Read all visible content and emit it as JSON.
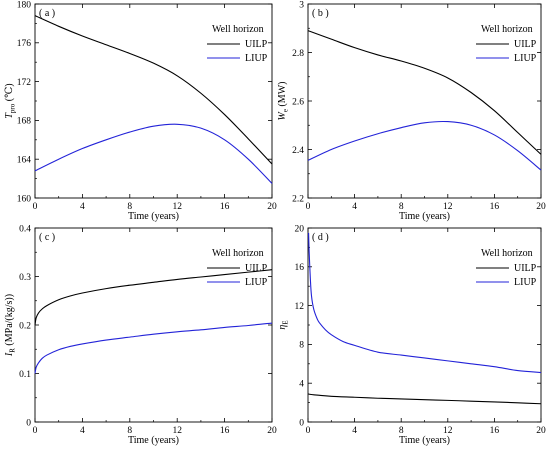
{
  "chart_data": [
    {
      "type": "line",
      "panel_label": "( a )",
      "xlabel": "Time (years)",
      "ylabel_main": "T",
      "ylabel_sub": "pro",
      "ylabel_unit": " (℃)",
      "xlim": [
        0,
        20
      ],
      "ylim": [
        160,
        180
      ],
      "xticks": [
        "0",
        "4",
        "8",
        "12",
        "16",
        "20"
      ],
      "yticks": [
        "160",
        "164",
        "168",
        "172",
        "176",
        "180"
      ],
      "ytick_values": [
        160,
        164,
        168,
        172,
        176,
        180
      ],
      "legend_title": "Well horizon",
      "legend_placement": "top-right",
      "grid": false,
      "series": [
        {
          "name": "UILP",
          "color": "#000000",
          "x": [
            0,
            2,
            4,
            6,
            8,
            10,
            12,
            14,
            16,
            18,
            20
          ],
          "y": [
            178.8,
            177.7,
            176.7,
            175.8,
            174.9,
            173.9,
            172.6,
            170.8,
            168.6,
            166.1,
            163.5
          ]
        },
        {
          "name": "LIUP",
          "color": "#2323d8",
          "x": [
            0,
            2,
            4,
            6,
            8,
            10,
            12,
            14,
            16,
            18,
            20
          ],
          "y": [
            162.8,
            164.0,
            165.1,
            166.0,
            166.8,
            167.4,
            167.6,
            167.2,
            166.0,
            164.0,
            161.5
          ]
        }
      ]
    },
    {
      "type": "line",
      "panel_label": "( b )",
      "xlabel": "Time (years)",
      "ylabel_main": "W",
      "ylabel_sub": "e",
      "ylabel_unit": " (MW)",
      "xlim": [
        0,
        20
      ],
      "ylim": [
        2.2,
        3.0
      ],
      "xticks": [
        "0",
        "4",
        "8",
        "12",
        "16",
        "20"
      ],
      "yticks": [
        "2.2",
        "2.4",
        "2.6",
        "2.8",
        "3"
      ],
      "ytick_values": [
        2.2,
        2.4,
        2.6,
        2.8,
        3.0
      ],
      "legend_title": "Well horizon",
      "legend_placement": "top-right",
      "grid": false,
      "series": [
        {
          "name": "UILP",
          "color": "#000000",
          "x": [
            0,
            2,
            4,
            6,
            8,
            10,
            12,
            14,
            16,
            18,
            20
          ],
          "y": [
            2.89,
            2.855,
            2.82,
            2.79,
            2.765,
            2.735,
            2.695,
            2.635,
            2.56,
            2.47,
            2.38
          ]
        },
        {
          "name": "LIUP",
          "color": "#2323d8",
          "x": [
            0,
            2,
            4,
            6,
            8,
            10,
            12,
            14,
            16,
            18,
            20
          ],
          "y": [
            2.355,
            2.4,
            2.435,
            2.465,
            2.49,
            2.51,
            2.515,
            2.5,
            2.46,
            2.395,
            2.315
          ]
        }
      ]
    },
    {
      "type": "line",
      "panel_label": "( c )",
      "xlabel": "Time (years)",
      "ylabel_main": "I",
      "ylabel_sub": "R",
      "ylabel_unit": " (MPa/(kg/s))",
      "xlim": [
        0,
        20
      ],
      "ylim": [
        0,
        0.4
      ],
      "xticks": [
        "0",
        "4",
        "8",
        "12",
        "16",
        "20"
      ],
      "yticks": [
        "0",
        "0.1",
        "0.2",
        "0.3",
        "0.4"
      ],
      "ytick_values": [
        0,
        0.1,
        0.2,
        0.3,
        0.4
      ],
      "legend_title": "Well horizon",
      "legend_placement": "top-right",
      "grid": false,
      "series": [
        {
          "name": "UILP",
          "color": "#000000",
          "x": [
            0,
            0.1,
            0.3,
            0.6,
            1,
            2,
            3,
            4,
            6,
            8,
            10,
            12,
            14,
            16,
            18,
            20
          ],
          "y": [
            0.2,
            0.215,
            0.225,
            0.233,
            0.24,
            0.252,
            0.26,
            0.266,
            0.275,
            0.282,
            0.288,
            0.294,
            0.299,
            0.304,
            0.309,
            0.314
          ]
        },
        {
          "name": "LIUP",
          "color": "#2323d8",
          "x": [
            0,
            0.1,
            0.3,
            0.6,
            1,
            2,
            3,
            4,
            6,
            8,
            10,
            12,
            14,
            16,
            18,
            20
          ],
          "y": [
            0.1,
            0.113,
            0.122,
            0.131,
            0.138,
            0.149,
            0.156,
            0.161,
            0.169,
            0.175,
            0.181,
            0.186,
            0.19,
            0.195,
            0.199,
            0.204
          ]
        }
      ]
    },
    {
      "type": "line",
      "panel_label": "( d )",
      "xlabel": "Time (years)",
      "ylabel_main": "η",
      "ylabel_sub": "E",
      "ylabel_unit": "",
      "xlim": [
        0,
        20
      ],
      "ylim": [
        0,
        20
      ],
      "xticks": [
        "0",
        "4",
        "8",
        "12",
        "16",
        "20"
      ],
      "yticks": [
        "0",
        "4",
        "8",
        "12",
        "16",
        "20"
      ],
      "ytick_values": [
        0,
        4,
        8,
        12,
        16,
        20
      ],
      "legend_title": "Well horizon",
      "legend_placement": "top-right",
      "grid": false,
      "series": [
        {
          "name": "UILP",
          "color": "#000000",
          "x": [
            0,
            0.2,
            0.5,
            1,
            2,
            4,
            6,
            8,
            10,
            12,
            14,
            16,
            18,
            20
          ],
          "y": [
            2.9,
            2.85,
            2.8,
            2.75,
            2.65,
            2.55,
            2.45,
            2.38,
            2.3,
            2.23,
            2.15,
            2.07,
            1.98,
            1.88
          ]
        },
        {
          "name": "LIUP",
          "color": "#2323d8",
          "x": [
            0.05,
            0.1,
            0.2,
            0.3,
            0.5,
            0.8,
            1,
            1.5,
            2,
            3,
            4,
            6,
            8,
            10,
            12,
            14,
            16,
            18,
            20
          ],
          "y": [
            19.5,
            17.5,
            14.8,
            13.0,
            11.6,
            10.6,
            10.2,
            9.5,
            9.0,
            8.3,
            7.9,
            7.2,
            6.9,
            6.6,
            6.3,
            6.0,
            5.7,
            5.3,
            5.1
          ]
        }
      ]
    }
  ]
}
